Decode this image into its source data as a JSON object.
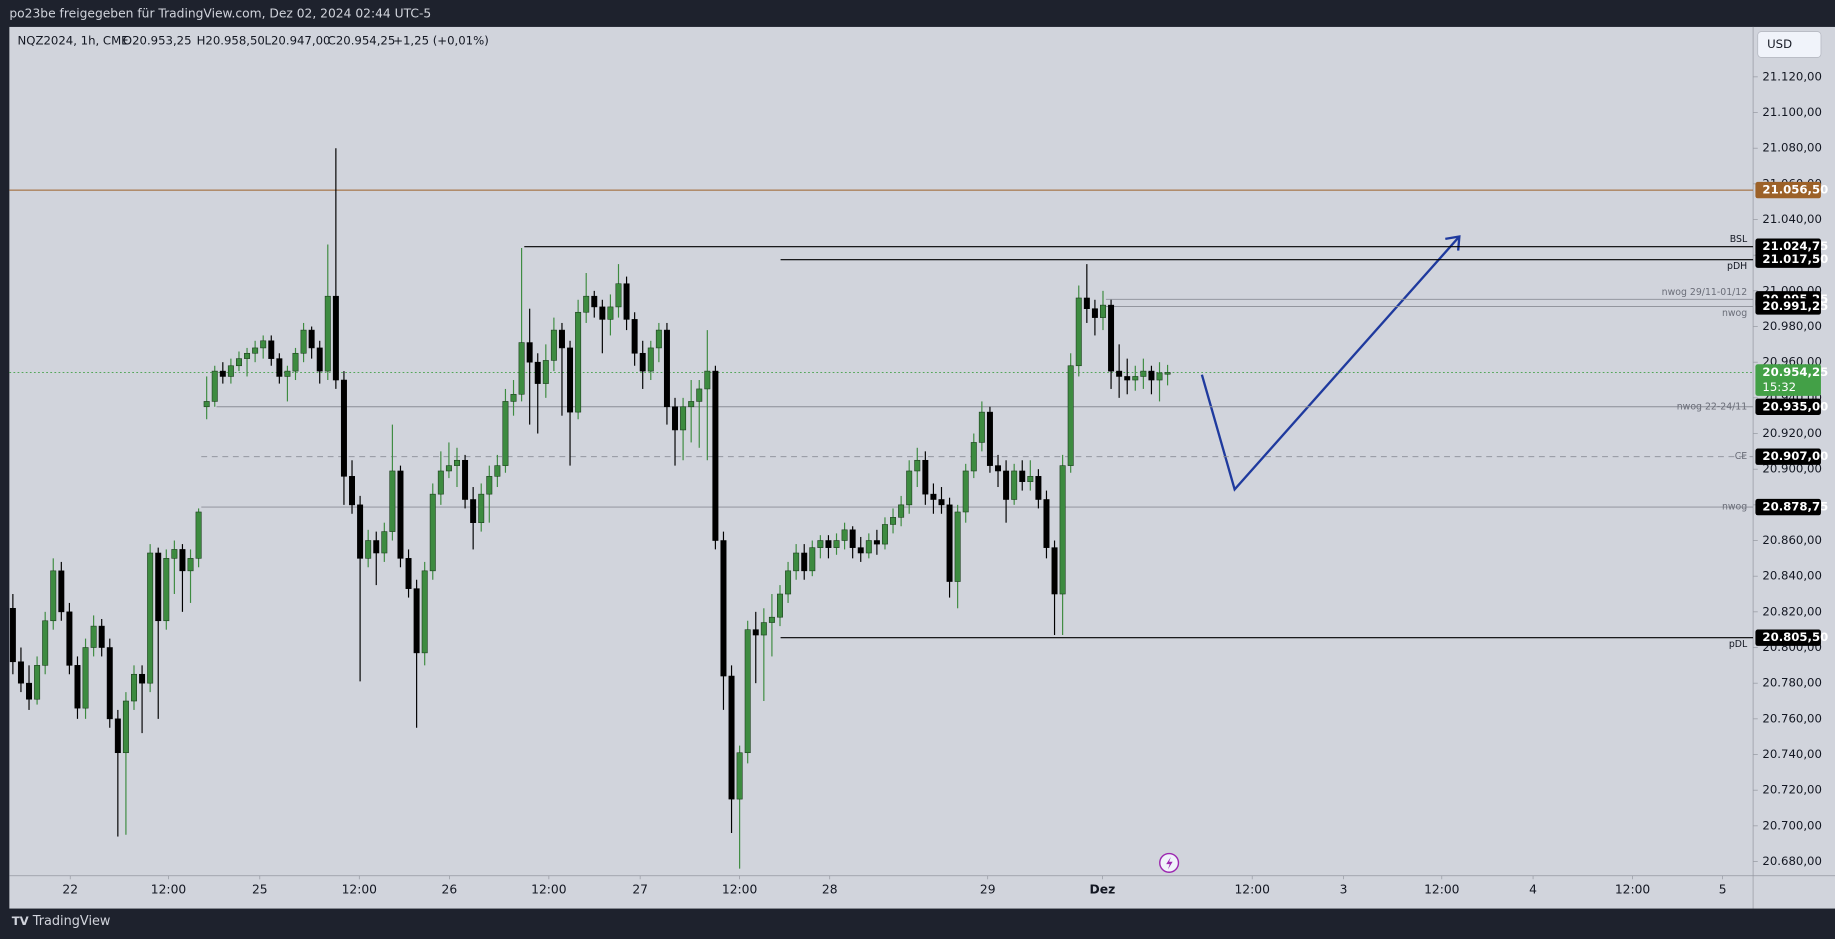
{
  "header": {
    "text": "po23be freigegeben für TradingView.com, Dez 02, 2024 02:44 UTC-5"
  },
  "chart_data": {
    "type": "candlestick",
    "legend": [
      "NQZ2024, 1h, CME",
      "O20.953,25",
      "H20.958,50",
      "L20.947,00",
      "C20.954,25",
      "+1,25 (+0,01%)"
    ],
    "currency": "USD",
    "countdown": "15:32",
    "bull_color": "#3d8b40",
    "bear_color": "#000000",
    "ylim": [
      20672,
      21148
    ],
    "yticks": [
      {
        "value": 21120,
        "label": "21.120,00"
      },
      {
        "value": 21100,
        "label": "21.100,00"
      },
      {
        "value": 21080,
        "label": "21.080,00"
      },
      {
        "value": 21060,
        "label": "21.060,00"
      },
      {
        "value": 21040,
        "label": "21.040,00"
      },
      {
        "value": 21020,
        "label": "21.020,00"
      },
      {
        "value": 21000,
        "label": "21.000,00"
      },
      {
        "value": 20980,
        "label": "20.980,00"
      },
      {
        "value": 20960,
        "label": "20.960,00"
      },
      {
        "value": 20940,
        "label": "20.940,00"
      },
      {
        "value": 20920,
        "label": "20.920,00"
      },
      {
        "value": 20900,
        "label": "20.900,00"
      },
      {
        "value": 20880,
        "label": "20.880,00"
      },
      {
        "value": 20860,
        "label": "20.860,00"
      },
      {
        "value": 20840,
        "label": "20.840,00"
      },
      {
        "value": 20820,
        "label": "20.820,00"
      },
      {
        "value": 20800,
        "label": "20.800,00"
      },
      {
        "value": 20780,
        "label": "20.780,00"
      },
      {
        "value": 20760,
        "label": "20.760,00"
      },
      {
        "value": 20740,
        "label": "20.740,00"
      },
      {
        "value": 20720,
        "label": "20.720,00"
      },
      {
        "value": 20700,
        "label": "20.700,00"
      },
      {
        "value": 20680,
        "label": "20.680,00"
      }
    ],
    "categories": [
      "22",
      "12:00",
      "25",
      "12:00",
      "26",
      "12:00",
      "27",
      "12:00",
      "28",
      "29",
      "Dez",
      "12:00",
      "3",
      "12:00",
      "4",
      "12:00",
      "5"
    ],
    "levels": [
      {
        "value": 21056.5,
        "label": "21.056,50",
        "color": "#9c6128",
        "style": "solid"
      },
      {
        "value": 21024.75,
        "label": "21.024,75",
        "name": "BSL",
        "color": "#000000",
        "style": "solid"
      },
      {
        "value": 21017.5,
        "label": "21.017,50",
        "name": "pDH",
        "color": "#000000",
        "style": "solid"
      },
      {
        "value": 20995.25,
        "label": "20.995,25",
        "name": "nwog 29/11-01/12",
        "color": "#8a8d96",
        "style": "solid"
      },
      {
        "value": 20991.25,
        "label": "20.991,25",
        "name": "nwog",
        "color": "#8a8d96",
        "style": "solid"
      },
      {
        "value": 20954.25,
        "label": "20.954,25",
        "color": "#43a047",
        "style": "dotted"
      },
      {
        "value": 20935,
        "label": "20.935,00",
        "name": "nwog 22-24/11",
        "color": "#8a8d96",
        "style": "solid"
      },
      {
        "value": 20907,
        "label": "20.907,00",
        "name": "CE",
        "color": "#8a8d96",
        "style": "dashed"
      },
      {
        "value": 20878.75,
        "label": "20.878,75",
        "name": "nwog",
        "color": "#8a8d96",
        "style": "solid"
      },
      {
        "value": 20805.5,
        "label": "20.805,50",
        "name": "pDL",
        "color": "#000000",
        "style": "solid"
      }
    ],
    "ohlc": [
      [
        20822,
        20830,
        20785,
        20792
      ],
      [
        20792,
        20800,
        20775,
        20780
      ],
      [
        20780,
        20790,
        20765,
        20771
      ],
      [
        20771,
        20795,
        20768,
        20790
      ],
      [
        20790,
        20820,
        20785,
        20815
      ],
      [
        20815,
        20850,
        20810,
        20843
      ],
      [
        20843,
        20848,
        20815,
        20820
      ],
      [
        20820,
        20825,
        20785,
        20790
      ],
      [
        20790,
        20795,
        20760,
        20766
      ],
      [
        20766,
        20805,
        20760,
        20800
      ],
      [
        20800,
        20818,
        20795,
        20812
      ],
      [
        20812,
        20816,
        20795,
        20800
      ],
      [
        20800,
        20805,
        20755,
        20760
      ],
      [
        20760,
        20765,
        20694,
        20741
      ],
      [
        20741,
        20775,
        20695,
        20770
      ],
      [
        20770,
        20790,
        20765,
        20785
      ],
      [
        20785,
        20790,
        20752,
        20780
      ],
      [
        20780,
        20858,
        20775,
        20853
      ],
      [
        20853,
        20856,
        20760,
        20815
      ],
      [
        20815,
        20855,
        20810,
        20850
      ],
      [
        20850,
        20860,
        20830,
        20855
      ],
      [
        20855,
        20858,
        20820,
        20843
      ],
      [
        20843,
        20855,
        20825,
        20850
      ],
      [
        20850,
        20878,
        20845,
        20876
      ],
      [
        20935,
        20952,
        20928,
        20938
      ],
      [
        20938,
        20958,
        20935,
        20955
      ],
      [
        20955,
        20960,
        20948,
        20952
      ],
      [
        20952,
        20962,
        20948,
        20958
      ],
      [
        20958,
        20966,
        20955,
        20962
      ],
      [
        20962,
        20968,
        20952,
        20965
      ],
      [
        20965,
        20972,
        20960,
        20968
      ],
      [
        20968,
        20975,
        20962,
        20972
      ],
      [
        20972,
        20975,
        20958,
        20962
      ],
      [
        20962,
        20965,
        20948,
        20952
      ],
      [
        20952,
        20958,
        20938,
        20955
      ],
      [
        20955,
        20968,
        20950,
        20965
      ],
      [
        20965,
        20982,
        20960,
        20978
      ],
      [
        20978,
        20980,
        20962,
        20968
      ],
      [
        20968,
        20972,
        20948,
        20955
      ],
      [
        20955,
        21026,
        20950,
        20997
      ],
      [
        20997,
        21080,
        20945,
        20950
      ],
      [
        20950,
        20955,
        20880,
        20896
      ],
      [
        20896,
        20905,
        20875,
        20880
      ],
      [
        20880,
        20885,
        20781,
        20850
      ],
      [
        20850,
        20866,
        20845,
        20860
      ],
      [
        20860,
        20865,
        20835,
        20853
      ],
      [
        20853,
        20870,
        20848,
        20865
      ],
      [
        20865,
        20925,
        20860,
        20899
      ],
      [
        20899,
        20902,
        20845,
        20850
      ],
      [
        20850,
        20855,
        20828,
        20833
      ],
      [
        20833,
        20838,
        20755,
        20797
      ],
      [
        20797,
        20848,
        20790,
        20843
      ],
      [
        20843,
        20892,
        20838,
        20886
      ],
      [
        20886,
        20910,
        20880,
        20899
      ],
      [
        20899,
        20915,
        20895,
        20902
      ],
      [
        20902,
        20912,
        20890,
        20905
      ],
      [
        20905,
        20908,
        20878,
        20883
      ],
      [
        20883,
        20890,
        20855,
        20870
      ],
      [
        20870,
        20892,
        20865,
        20886
      ],
      [
        20886,
        20902,
        20870,
        20896
      ],
      [
        20896,
        20908,
        20890,
        20902
      ],
      [
        20902,
        20945,
        20898,
        20938
      ],
      [
        20938,
        20950,
        20930,
        20942
      ],
      [
        20942,
        21024,
        20938,
        20971
      ],
      [
        20971,
        20990,
        20925,
        20960
      ],
      [
        20960,
        20965,
        20920,
        20948
      ],
      [
        20948,
        20970,
        20940,
        20961
      ],
      [
        20961,
        20985,
        20955,
        20978
      ],
      [
        20978,
        20982,
        20930,
        20968
      ],
      [
        20968,
        20972,
        20902,
        20932
      ],
      [
        20932,
        20995,
        20928,
        20988
      ],
      [
        20988,
        21010,
        20982,
        20997
      ],
      [
        20997,
        21000,
        20985,
        20991
      ],
      [
        20991,
        20995,
        20965,
        20984
      ],
      [
        20984,
        20998,
        20975,
        20991
      ],
      [
        20991,
        21015,
        20985,
        21004
      ],
      [
        21004,
        21008,
        20978,
        20984
      ],
      [
        20984,
        20988,
        20958,
        20965
      ],
      [
        20965,
        20972,
        20945,
        20955
      ],
      [
        20955,
        20972,
        20950,
        20968
      ],
      [
        20968,
        20982,
        20960,
        20978
      ],
      [
        20978,
        20982,
        20925,
        20935
      ],
      [
        20935,
        20940,
        20902,
        20922
      ],
      [
        20922,
        20940,
        20905,
        20935
      ],
      [
        20935,
        20950,
        20915,
        20938
      ],
      [
        20938,
        20950,
        20912,
        20945
      ],
      [
        20945,
        20978,
        20905,
        20955
      ],
      [
        20955,
        20958,
        20855,
        20860
      ],
      [
        20860,
        20865,
        20765,
        20784
      ],
      [
        20784,
        20790,
        20696,
        20715
      ],
      [
        20715,
        20745,
        20676,
        20741
      ],
      [
        20741,
        20815,
        20735,
        20810
      ],
      [
        20810,
        20820,
        20780,
        20807
      ],
      [
        20807,
        20822,
        20770,
        20814
      ],
      [
        20814,
        20830,
        20795,
        20817
      ],
      [
        20817,
        20835,
        20812,
        20830
      ],
      [
        20830,
        20848,
        20825,
        20843
      ],
      [
        20843,
        20858,
        20838,
        20853
      ],
      [
        20853,
        20858,
        20838,
        20843
      ],
      [
        20843,
        20860,
        20840,
        20856
      ],
      [
        20856,
        20863,
        20850,
        20860
      ],
      [
        20860,
        20863,
        20850,
        20856
      ],
      [
        20856,
        20864,
        20852,
        20860
      ],
      [
        20860,
        20870,
        20855,
        20866
      ],
      [
        20866,
        20868,
        20850,
        20856
      ],
      [
        20856,
        20862,
        20848,
        20853
      ],
      [
        20853,
        20864,
        20850,
        20860
      ],
      [
        20860,
        20866,
        20852,
        20858
      ],
      [
        20858,
        20873,
        20855,
        20869
      ],
      [
        20869,
        20878,
        20864,
        20873
      ],
      [
        20873,
        20885,
        20868,
        20880
      ],
      [
        20880,
        20905,
        20875,
        20899
      ],
      [
        20899,
        20912,
        20890,
        20905
      ],
      [
        20905,
        20910,
        20880,
        20886
      ],
      [
        20886,
        20892,
        20875,
        20883
      ],
      [
        20883,
        20890,
        20875,
        20880
      ],
      [
        20880,
        20884,
        20828,
        20837
      ],
      [
        20837,
        20880,
        20822,
        20876
      ],
      [
        20876,
        20903,
        20870,
        20899
      ],
      [
        20899,
        20920,
        20895,
        20915
      ],
      [
        20915,
        20938,
        20910,
        20932
      ],
      [
        20932,
        20935,
        20898,
        20902
      ],
      [
        20902,
        20908,
        20890,
        20899
      ],
      [
        20899,
        20905,
        20870,
        20883
      ],
      [
        20883,
        20903,
        20880,
        20899
      ],
      [
        20899,
        20905,
        20888,
        20893
      ],
      [
        20893,
        20905,
        20888,
        20896
      ],
      [
        20896,
        20900,
        20878,
        20883
      ],
      [
        20883,
        20888,
        20850,
        20856
      ],
      [
        20856,
        20860,
        20807,
        20830
      ],
      [
        20830,
        20908,
        20807,
        20902
      ],
      [
        20902,
        20965,
        20898,
        20958
      ],
      [
        20958,
        21003,
        20952,
        20996
      ],
      [
        20996,
        21015,
        20982,
        20990
      ],
      [
        20990,
        20995,
        20975,
        20985
      ],
      [
        20985,
        21000,
        20978,
        20992
      ],
      [
        20992,
        20995,
        20945,
        20955
      ],
      [
        20955,
        20970,
        20940,
        20952
      ],
      [
        20952,
        20962,
        20942,
        20950
      ],
      [
        20950,
        20958,
        20944,
        20952
      ],
      [
        20952,
        20962,
        20945,
        20955
      ],
      [
        20955,
        20958,
        20942,
        20950
      ],
      [
        20950,
        20960,
        20938,
        20954
      ],
      [
        20953.25,
        20958.5,
        20947,
        20954.25
      ]
    ]
  },
  "footer": {
    "brand": "TradingView"
  }
}
